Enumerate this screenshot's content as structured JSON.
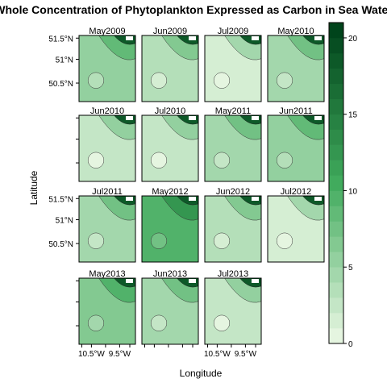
{
  "chart_data": {
    "type": "heatmap",
    "title": "Whole Concentration of Phytoplankton Expressed as Carbon in Sea Water",
    "xlabel": "Longitude",
    "ylabel": "Latitude",
    "x_ticks": [
      "10.5°W",
      "9.5°W"
    ],
    "y_ticks": [
      "50.5°N",
      "51°N",
      "51.5°N"
    ],
    "colorbar": {
      "ticks": [
        "0",
        "5",
        "10",
        "15",
        "20"
      ],
      "range": [
        0,
        21
      ],
      "levels": 21,
      "color_low": "#e5f5e0",
      "color_mid": "#41ab5d",
      "color_high": "#00441b"
    },
    "panels": [
      {
        "label": "May2009",
        "mean_level": 5
      },
      {
        "label": "Jun2009",
        "mean_level": 3
      },
      {
        "label": "Jul2009",
        "mean_level": 1
      },
      {
        "label": "May2010",
        "mean_level": 4
      },
      {
        "label": "Jun2010",
        "mean_level": 2
      },
      {
        "label": "Jul2010",
        "mean_level": 2
      },
      {
        "label": "May2011",
        "mean_level": 4
      },
      {
        "label": "Jun2011",
        "mean_level": 5
      },
      {
        "label": "Jul2011",
        "mean_level": 4
      },
      {
        "label": "May2012",
        "mean_level": 9
      },
      {
        "label": "Jun2012",
        "mean_level": 3
      },
      {
        "label": "Jul2012",
        "mean_level": 1
      },
      {
        "label": "May2013",
        "mean_level": 6
      },
      {
        "label": "Jun2013",
        "mean_level": 4
      },
      {
        "label": "Jul2013",
        "mean_level": 2
      }
    ]
  }
}
